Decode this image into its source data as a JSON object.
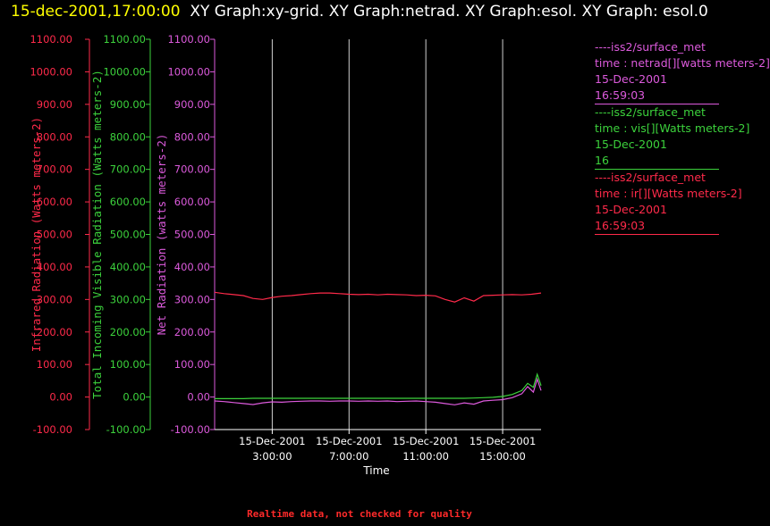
{
  "header": {
    "timestamp": "15-dec-2001,17:00:00",
    "graphs": "XY Graph:xy-grid.  XY Graph:netrad.  XY Graph:esol.  XY Graph: esol.0"
  },
  "footer": {
    "note": "Realtime data, not checked for quality"
  },
  "colors": {
    "ir": "#ff2a4a",
    "vis": "#3cd23c",
    "netrad": "#dc5adc",
    "grid": "#ffffff",
    "axis": "#ffffff"
  },
  "legend": [
    {
      "title": "----iss2/surface_met",
      "var": "time : netrad[][watts meters-2]",
      "date": "15-Dec-2001",
      "time": "16:59:03",
      "color": "#dc5adc"
    },
    {
      "title": "----iss2/surface_met",
      "var": "time : vis[][Watts meters-2]",
      "date": "15-Dec-2001",
      "time": "16",
      "color": "#3cd23c"
    },
    {
      "title": "----iss2/surface_met",
      "var": "time : ir[][Watts meters-2]",
      "date": "15-Dec-2001",
      "time": "16:59:03",
      "color": "#ff2a4a"
    }
  ],
  "chart_data": {
    "type": "line",
    "xlabel": "Time",
    "xlim": [
      "15-Dec-2001 00:00",
      "15-Dec-2001 17:00"
    ],
    "x_ticks": [
      {
        "date": "15-Dec-2001",
        "time": "3:00:00"
      },
      {
        "date": "15-Dec-2001",
        "time": "7:00:00"
      },
      {
        "date": "15-Dec-2001",
        "time": "11:00:00"
      },
      {
        "date": "15-Dec-2001",
        "time": "15:00:00"
      }
    ],
    "vertical_gridlines": true,
    "y_axes": [
      {
        "label": "Infrared Radiation (Watts meters-2)",
        "color": "#ff2a4a",
        "ylim": [
          -100,
          1100
        ],
        "ticks": [
          "-100.00",
          "0.00",
          "100.00",
          "200.00",
          "300.00",
          "400.00",
          "500.00",
          "600.00",
          "700.00",
          "800.00",
          "900.00",
          "1000.00",
          "1100.00"
        ]
      },
      {
        "label": "Total Incoming Visible Radiation (Watts meters-2)",
        "color": "#3cd23c",
        "ylim": [
          -100,
          1100
        ],
        "ticks": [
          "-100.00",
          "0.00",
          "100.00",
          "200.00",
          "300.00",
          "400.00",
          "500.00",
          "600.00",
          "700.00",
          "800.00",
          "900.00",
          "1000.00",
          "1100.00"
        ]
      },
      {
        "label": "Net Radiation (watts meters-2)",
        "color": "#dc5adc",
        "ylim": [
          -100,
          1100
        ],
        "ticks": [
          "-100.00",
          "0.00",
          "100.00",
          "200.00",
          "300.00",
          "400.00",
          "500.00",
          "600.00",
          "700.00",
          "800.00",
          "900.00",
          "1000.00",
          "1100.00"
        ]
      }
    ],
    "series": [
      {
        "name": "time : ir[][Watts meters-2]",
        "color": "#ff2a4a",
        "x": [
          0,
          0.5,
          1,
          1.5,
          2,
          2.5,
          3,
          3.5,
          4,
          4.5,
          5,
          5.5,
          6,
          6.5,
          7,
          7.5,
          8,
          8.5,
          9,
          9.5,
          10,
          10.5,
          11,
          11.5,
          12,
          12.5,
          13,
          13.5,
          14,
          14.5,
          15,
          15.5,
          16,
          16.5,
          17
        ],
        "y": [
          322,
          318,
          315,
          312,
          303,
          300,
          306,
          310,
          312,
          315,
          318,
          320,
          320,
          318,
          316,
          315,
          316,
          314,
          316,
          315,
          314,
          312,
          313,
          311,
          300,
          292,
          305,
          295,
          312,
          313,
          314,
          315,
          314,
          316,
          320
        ]
      },
      {
        "name": "time : vis[][Watts meters-2]",
        "color": "#3cd23c",
        "x": [
          0,
          0.5,
          1,
          1.5,
          2,
          2.5,
          3,
          3.5,
          4,
          4.5,
          5,
          5.5,
          6,
          6.5,
          7,
          7.5,
          8,
          8.5,
          9,
          9.5,
          10,
          10.5,
          11,
          11.5,
          12,
          12.5,
          13,
          13.5,
          14,
          14.5,
          15,
          15.5,
          16,
          16.3,
          16.6,
          16.8,
          17
        ],
        "y": [
          -5,
          -5,
          -5,
          -5,
          -4,
          -4,
          -4,
          -4,
          -4,
          -4,
          -4,
          -4,
          -4,
          -4,
          -4,
          -4,
          -4,
          -4,
          -4,
          -4,
          -4,
          -4,
          -4,
          -4,
          -4,
          -4,
          -4,
          -3,
          -2,
          -1,
          2,
          8,
          20,
          42,
          30,
          70,
          35
        ]
      },
      {
        "name": "time : netrad[][watts meters-2]",
        "color": "#dc5adc",
        "x": [
          0,
          0.5,
          1,
          1.5,
          2,
          2.5,
          3,
          3.5,
          4,
          4.5,
          5,
          5.5,
          6,
          6.5,
          7,
          7.5,
          8,
          8.5,
          9,
          9.5,
          10,
          10.5,
          11,
          11.5,
          12,
          12.5,
          13,
          13.5,
          14,
          14.5,
          15,
          15.5,
          16,
          16.3,
          16.6,
          16.8,
          17
        ],
        "y": [
          -12,
          -14,
          -17,
          -20,
          -23,
          -18,
          -15,
          -16,
          -14,
          -13,
          -12,
          -12,
          -13,
          -12,
          -12,
          -13,
          -12,
          -13,
          -12,
          -14,
          -13,
          -12,
          -14,
          -16,
          -20,
          -24,
          -18,
          -22,
          -12,
          -10,
          -8,
          -2,
          10,
          32,
          15,
          55,
          20
        ]
      }
    ]
  }
}
